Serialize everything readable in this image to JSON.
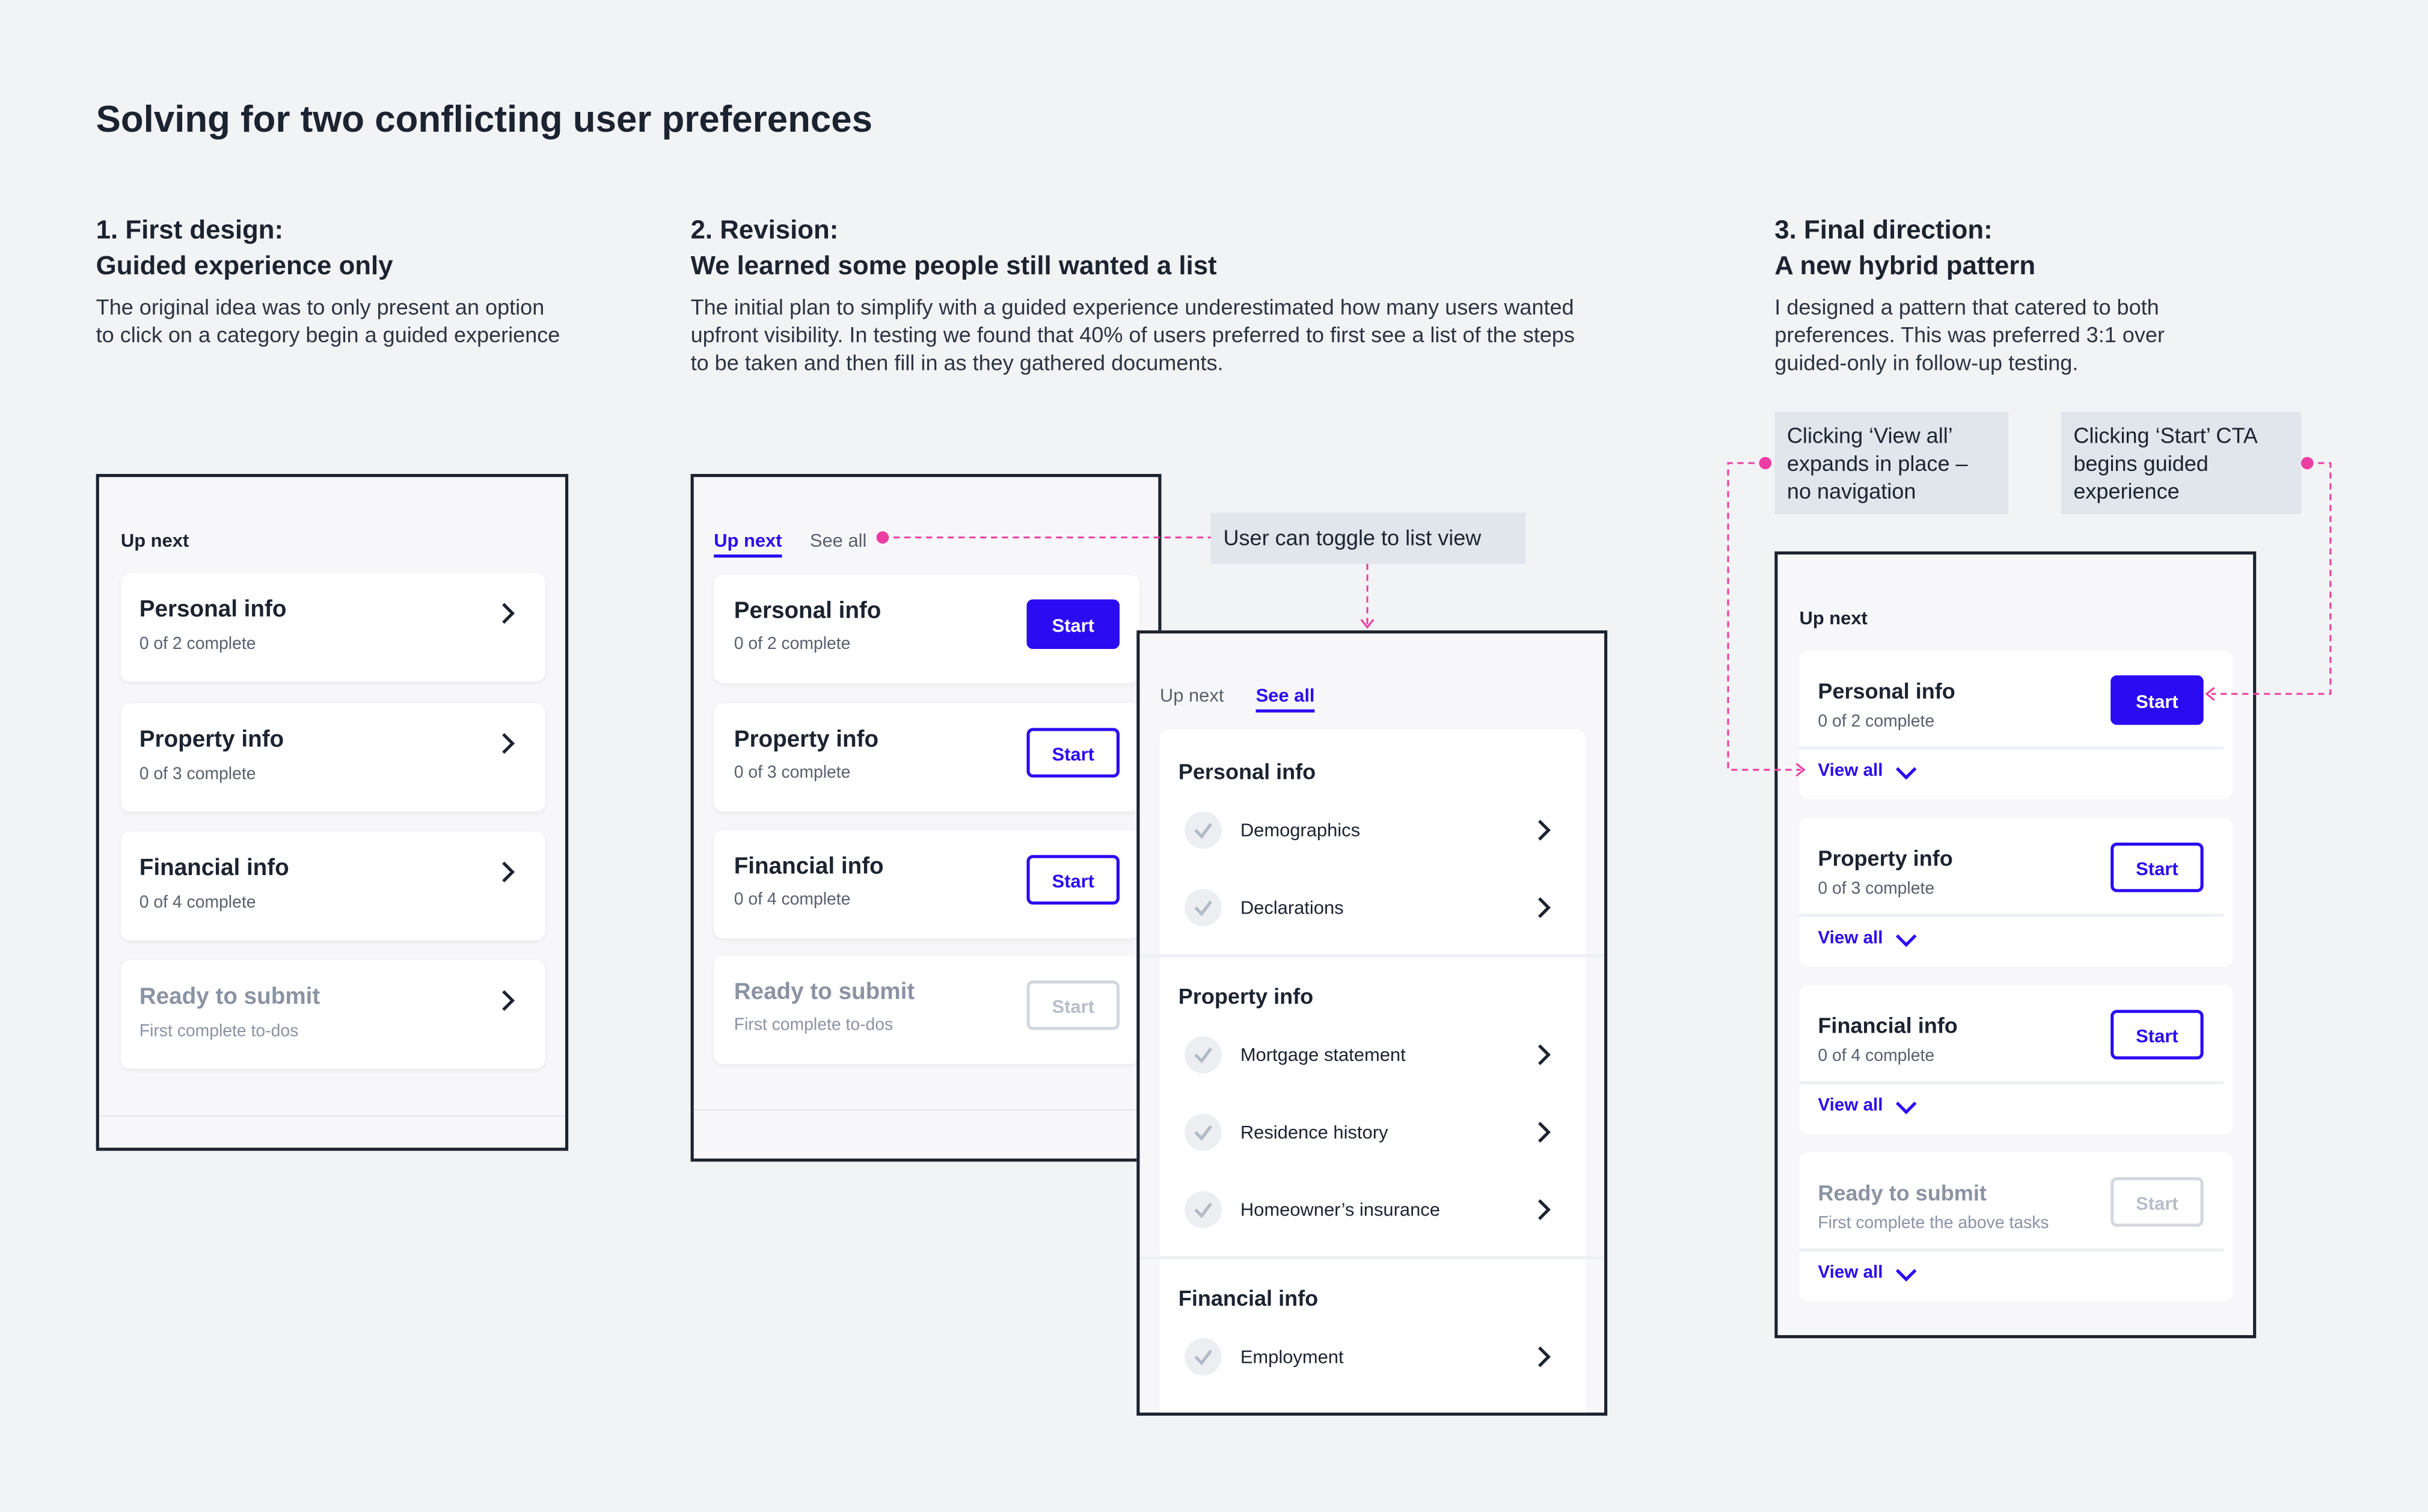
{
  "header": {
    "title": "Solving for two conflicting user preferences"
  },
  "columns": [
    {
      "heading": "1. First design:",
      "subheading": "Guided experience only",
      "description": "The original idea was to only present an option to click on a category begin a guided experience"
    },
    {
      "heading": "2. Revision:",
      "subheading": "We learned some people still wanted a list",
      "description": "The initial plan to simplify with a guided experience underestimated how many users wanted upfront visibility. In testing we found that 40% of users preferred to first see a list of the steps to be taken and then fill in as they gathered documents."
    },
    {
      "heading": "3. Final direction:",
      "subheading": "A new hybrid pattern",
      "description": "I designed a pattern that catered to both preferences. This was preferred 3:1 over guided-only in follow-up testing."
    }
  ],
  "guided_panel": {
    "label": "Up next",
    "cards": [
      {
        "title": "Personal info",
        "subtitle": "0 of 2 complete",
        "disabled": false
      },
      {
        "title": "Property info",
        "subtitle": "0 of 3 complete",
        "disabled": false
      },
      {
        "title": "Financial info",
        "subtitle": "0 of 4 complete",
        "disabled": false
      },
      {
        "title": "Ready to submit",
        "subtitle": "First complete to-dos",
        "disabled": true
      }
    ]
  },
  "revision_panel": {
    "tabs": [
      "Up next",
      "See all"
    ],
    "active_tab": 0,
    "cards": [
      {
        "title": "Personal info",
        "subtitle": "0 of 2 complete",
        "button": "Start",
        "button_style": "filled"
      },
      {
        "title": "Property info",
        "subtitle": "0 of 3 complete",
        "button": "Start",
        "button_style": "outline"
      },
      {
        "title": "Financial info",
        "subtitle": "0 of 4 complete",
        "button": "Start",
        "button_style": "outline"
      },
      {
        "title": "Ready to submit",
        "subtitle": "First complete to-dos",
        "button": "Start",
        "button_style": "disabled"
      }
    ]
  },
  "list_panel": {
    "tabs": [
      "Up next",
      "See all"
    ],
    "active_tab": 1,
    "groups": [
      {
        "title": "Personal info",
        "items": [
          "Demographics",
          "Declarations"
        ]
      },
      {
        "title": "Property info",
        "items": [
          "Mortgage statement",
          "Residence history",
          "Homeowner’s insurance"
        ]
      },
      {
        "title": "Financial info",
        "items": [
          "Employment"
        ]
      }
    ]
  },
  "hybrid_panel": {
    "label": "Up next",
    "cards": [
      {
        "title": "Personal info",
        "subtitle": "0 of 2 complete",
        "button": "Start",
        "button_style": "filled",
        "link": "View all"
      },
      {
        "title": "Property info",
        "subtitle": "0 of 3 complete",
        "button": "Start",
        "button_style": "outline",
        "link": "View all"
      },
      {
        "title": "Financial info",
        "subtitle": "0 of 4 complete",
        "button": "Start",
        "button_style": "outline",
        "link": "View all"
      },
      {
        "title": "Ready to submit",
        "subtitle": "First complete the above tasks",
        "button": "Start",
        "button_style": "disabled",
        "link": "View all"
      }
    ]
  },
  "annotations": {
    "toggle": "User can toggle to list view",
    "view_all": "Clicking ‘View all’ expands in place – no navigation",
    "start": "Clicking ‘Start’ CTA begins guided experience"
  }
}
